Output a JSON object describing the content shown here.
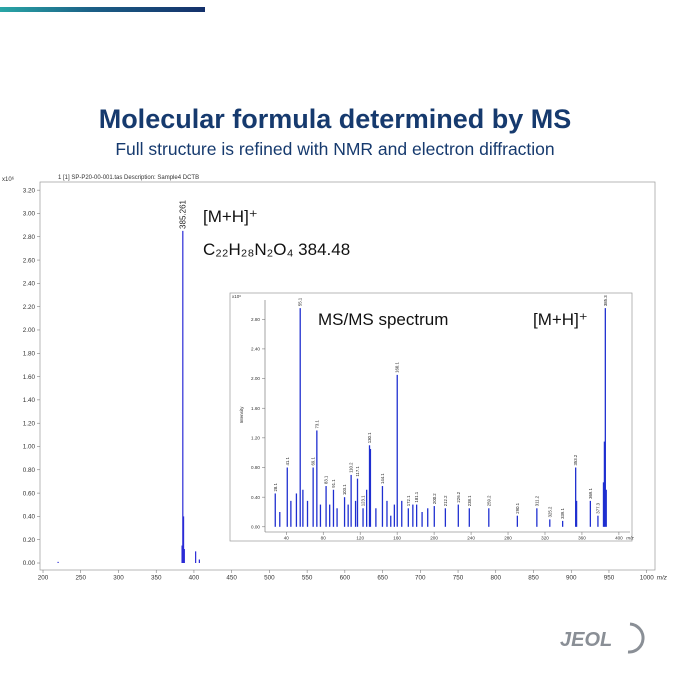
{
  "slide": {
    "title": "Molecular formula determined by MS",
    "subtitle": "Full structure is refined with NMR and electron diffraction",
    "logo": "JEOL"
  },
  "chart_data": [
    {
      "type": "spectrum",
      "header": "1 [1] SP-P20-00-001.tas    Description: Sample4 DCTB",
      "multiplier": "x10⁶",
      "x_unit": "m/z",
      "annotations": [
        "[M+H]⁺",
        "C₂₂H₂₈N₂O₄ 384.48"
      ],
      "color": "#2b2bd6",
      "xlim": [
        196,
        1011
      ],
      "ylim": [
        -0.06,
        3.27
      ],
      "xticks": [
        200,
        250,
        300,
        350,
        400,
        450,
        500,
        550,
        600,
        650,
        700,
        750,
        800,
        850,
        900,
        950,
        1000
      ],
      "yticks": [
        {
          "value": 0,
          "label": "0.00"
        },
        {
          "value": 0.2,
          "label": "0.20"
        },
        {
          "value": 0.4,
          "label": "0.40"
        },
        {
          "value": 0.6,
          "label": "0.60"
        },
        {
          "value": 0.8,
          "label": "0.80"
        },
        {
          "value": 1.0,
          "label": "1.00"
        },
        {
          "value": 1.2,
          "label": "1.20"
        },
        {
          "value": 1.4,
          "label": "1.40"
        },
        {
          "value": 1.6,
          "label": "1.60"
        },
        {
          "value": 1.8,
          "label": "1.80"
        },
        {
          "value": 2.0,
          "label": "2.00"
        },
        {
          "value": 2.2,
          "label": "2.20"
        },
        {
          "value": 2.4,
          "label": "2.40"
        },
        {
          "value": 2.6,
          "label": "2.60"
        },
        {
          "value": 2.8,
          "label": "2.80"
        },
        {
          "value": 3.0,
          "label": "3.00"
        },
        {
          "value": 3.2,
          "label": "3.20"
        }
      ],
      "peaks": [
        {
          "x": 220,
          "value": 0.01
        },
        {
          "x": 384.26,
          "value": 0.15
        },
        {
          "x": 385.261,
          "value": 2.85,
          "label": "385.261"
        },
        {
          "x": 386.26,
          "value": 0.4
        },
        {
          "x": 387.27,
          "value": 0.12
        },
        {
          "x": 402.25,
          "value": 0.1
        },
        {
          "x": 407.2,
          "value": 0.03
        }
      ]
    },
    {
      "type": "spectrum",
      "multiplier": "x10⁶",
      "x_unit": "m/z",
      "y_label": "Intensity",
      "annotations": [
        "MS/MS spectrum",
        "[M+H]⁺"
      ],
      "color": "#1f2fd0",
      "xlim": [
        17,
        412
      ],
      "ylim": [
        -0.07,
        3.06
      ],
      "xticks": [
        40,
        80,
        120,
        160,
        200,
        240,
        280,
        320,
        360,
        400
      ],
      "yticks": [
        {
          "value": 0,
          "label": "0.00"
        },
        {
          "value": 0.4,
          "label": "0.40"
        },
        {
          "value": 0.8,
          "label": "0.80"
        },
        {
          "value": 1.2,
          "label": "1.20"
        },
        {
          "value": 1.6,
          "label": "1.60"
        },
        {
          "value": 2.0,
          "label": "2.00"
        },
        {
          "value": 2.4,
          "label": "2.40"
        },
        {
          "value": 2.8,
          "label": "2.80"
        }
      ],
      "peaks": [
        {
          "x": 28.1,
          "value": 0.45,
          "label": "28.1"
        },
        {
          "x": 33,
          "value": 0.2
        },
        {
          "x": 41.1,
          "value": 0.8,
          "label": "41.1"
        },
        {
          "x": 45,
          "value": 0.35
        },
        {
          "x": 51,
          "value": 0.45
        },
        {
          "x": 55.1,
          "value": 2.95,
          "label": "55.1"
        },
        {
          "x": 58,
          "value": 0.5
        },
        {
          "x": 63,
          "value": 0.35
        },
        {
          "x": 69.1,
          "value": 0.8,
          "label": "69.1"
        },
        {
          "x": 73.1,
          "value": 1.3,
          "label": "73.1"
        },
        {
          "x": 77,
          "value": 0.3
        },
        {
          "x": 83.1,
          "value": 0.55,
          "label": "83.1"
        },
        {
          "x": 87,
          "value": 0.3
        },
        {
          "x": 91.1,
          "value": 0.5,
          "label": "91.1"
        },
        {
          "x": 95,
          "value": 0.25
        },
        {
          "x": 103.1,
          "value": 0.4,
          "label": "103.1"
        },
        {
          "x": 107,
          "value": 0.3
        },
        {
          "x": 110.2,
          "value": 0.7,
          "label": "110.2"
        },
        {
          "x": 115,
          "value": 0.35
        },
        {
          "x": 117.1,
          "value": 0.65,
          "label": "117.1"
        },
        {
          "x": 123.1,
          "value": 0.25,
          "label": "123.1"
        },
        {
          "x": 127,
          "value": 0.5
        },
        {
          "x": 130.1,
          "value": 1.1,
          "label": "130.1"
        },
        {
          "x": 131.1,
          "value": 1.05
        },
        {
          "x": 137,
          "value": 0.25
        },
        {
          "x": 144.1,
          "value": 0.55,
          "label": "144.1"
        },
        {
          "x": 149,
          "value": 0.35
        },
        {
          "x": 153.1,
          "value": 0.15
        },
        {
          "x": 157,
          "value": 0.3
        },
        {
          "x": 160.1,
          "value": 2.05,
          "label": "160.1"
        },
        {
          "x": 165,
          "value": 0.35
        },
        {
          "x": 172.1,
          "value": 0.25,
          "label": "172.1"
        },
        {
          "x": 177,
          "value": 0.3
        },
        {
          "x": 181.1,
          "value": 0.3,
          "label": "181.1"
        },
        {
          "x": 187,
          "value": 0.2
        },
        {
          "x": 193.1,
          "value": 0.25
        },
        {
          "x": 200.2,
          "value": 0.28,
          "label": "200.2"
        },
        {
          "x": 212.2,
          "value": 0.25,
          "label": "212.2"
        },
        {
          "x": 226.2,
          "value": 0.3,
          "label": "226.2"
        },
        {
          "x": 238.1,
          "value": 0.25,
          "label": "238.1"
        },
        {
          "x": 259.2,
          "value": 0.25,
          "label": "259.2"
        },
        {
          "x": 290.1,
          "value": 0.15,
          "label": "290.1"
        },
        {
          "x": 311.2,
          "value": 0.25,
          "label": "311.2"
        },
        {
          "x": 325.2,
          "value": 0.1,
          "label": "325.2"
        },
        {
          "x": 339.1,
          "value": 0.08,
          "label": "339.1"
        },
        {
          "x": 353.2,
          "value": 0.8,
          "label": "353.2"
        },
        {
          "x": 354.2,
          "value": 0.35
        },
        {
          "x": 369.1,
          "value": 0.35,
          "label": "369.1"
        },
        {
          "x": 377.3,
          "value": 0.15,
          "label": "377.3"
        },
        {
          "x": 383.3,
          "value": 0.6
        },
        {
          "x": 384.3,
          "value": 1.15
        },
        {
          "x": 385.3,
          "value": 2.95,
          "label": "385.3"
        },
        {
          "x": 386.3,
          "value": 0.5
        }
      ]
    }
  ]
}
